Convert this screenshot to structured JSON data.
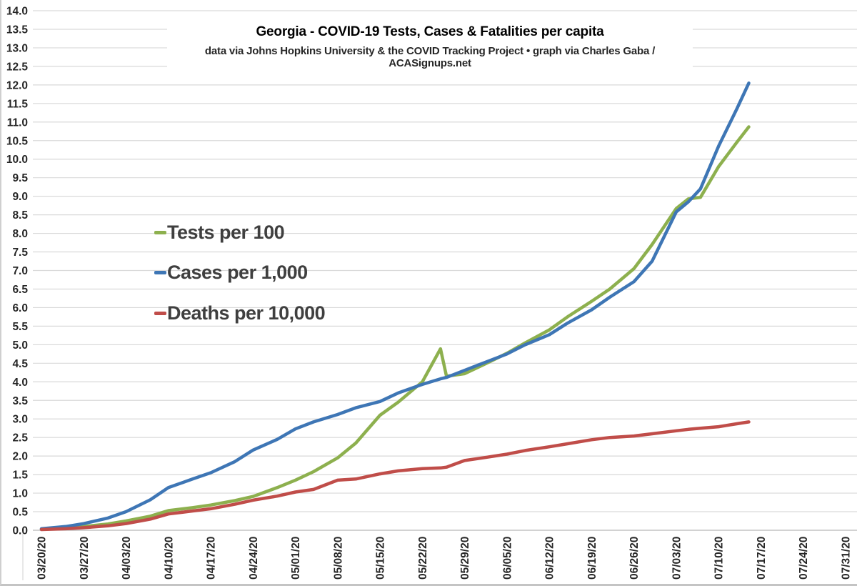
{
  "header": {
    "title": "Georgia - COVID-19 Tests, Cases & Fatalities per capita",
    "subtitle": "data via Johns Hopkins University & the COVID Tracking Project • graph via Charles Gaba / ACASignups.net"
  },
  "chart_data": {
    "type": "line",
    "title": "Georgia - COVID-19 Tests, Cases & Fatalities per capita",
    "subtitle": "data via Johns Hopkins University & the COVID Tracking Project • graph via Charles Gaba / ACASignups.net",
    "grid": true,
    "legend_position": "inside-left",
    "y_axis": {
      "min": 0,
      "max": 14,
      "step": 0.5,
      "decimals": 1
    },
    "x_axis": {
      "start_date": "03/20/20",
      "end_date": "07/31/20",
      "total_days": 133,
      "tick_labels": [
        "03/20/20",
        "03/27/20",
        "04/03/20",
        "04/10/20",
        "04/17/20",
        "04/24/20",
        "05/01/20",
        "05/08/20",
        "05/15/20",
        "05/22/20",
        "05/29/20",
        "06/05/20",
        "06/12/20",
        "06/19/20",
        "06/26/20",
        "07/03/20",
        "07/10/20",
        "07/17/20",
        "07/24/20",
        "07/31/20"
      ]
    },
    "sample_days_from_start": [
      0,
      4,
      7,
      11,
      14,
      18,
      21,
      25,
      28,
      32,
      35,
      39,
      42,
      45,
      49,
      52,
      56,
      59,
      63,
      66,
      67,
      70,
      73,
      77,
      80,
      84,
      87,
      91,
      94,
      98,
      101,
      105,
      107,
      109,
      112,
      115,
      117
    ],
    "series": [
      {
        "name": "Tests per 100",
        "color": "#8db04e",
        "values": [
          0.03,
          0.06,
          0.1,
          0.17,
          0.25,
          0.38,
          0.53,
          0.61,
          0.68,
          0.8,
          0.91,
          1.15,
          1.35,
          1.58,
          1.95,
          2.35,
          3.1,
          3.45,
          4.0,
          4.89,
          4.15,
          4.22,
          4.45,
          4.77,
          5.05,
          5.4,
          5.75,
          6.17,
          6.5,
          7.05,
          7.7,
          8.67,
          8.93,
          8.97,
          9.8,
          10.45,
          10.87
        ]
      },
      {
        "name": "Cases per 1,000",
        "color": "#3e76b5",
        "values": [
          0.04,
          0.1,
          0.18,
          0.33,
          0.5,
          0.82,
          1.15,
          1.38,
          1.55,
          1.85,
          2.16,
          2.45,
          2.73,
          2.92,
          3.12,
          3.3,
          3.47,
          3.7,
          3.93,
          4.08,
          4.12,
          4.31,
          4.5,
          4.75,
          5.0,
          5.27,
          5.58,
          5.94,
          6.28,
          6.7,
          7.25,
          8.58,
          8.85,
          9.2,
          10.35,
          11.35,
          12.05
        ]
      },
      {
        "name": "Deaths per 10,000",
        "color": "#c04d49",
        "values": [
          0.02,
          0.04,
          0.07,
          0.12,
          0.18,
          0.3,
          0.44,
          0.52,
          0.58,
          0.7,
          0.81,
          0.92,
          1.03,
          1.1,
          1.35,
          1.38,
          1.52,
          1.6,
          1.66,
          1.68,
          1.7,
          1.88,
          1.95,
          2.05,
          2.15,
          2.25,
          2.33,
          2.44,
          2.5,
          2.54,
          2.6,
          2.68,
          2.72,
          2.75,
          2.79,
          2.87,
          2.92
        ]
      }
    ]
  },
  "palette": {
    "gridline": "#d9d9d9",
    "zero_line": "#b7b7b7",
    "axis_text": "#262626",
    "legend_text": "#3f3f3f",
    "background": "#ffffff"
  }
}
